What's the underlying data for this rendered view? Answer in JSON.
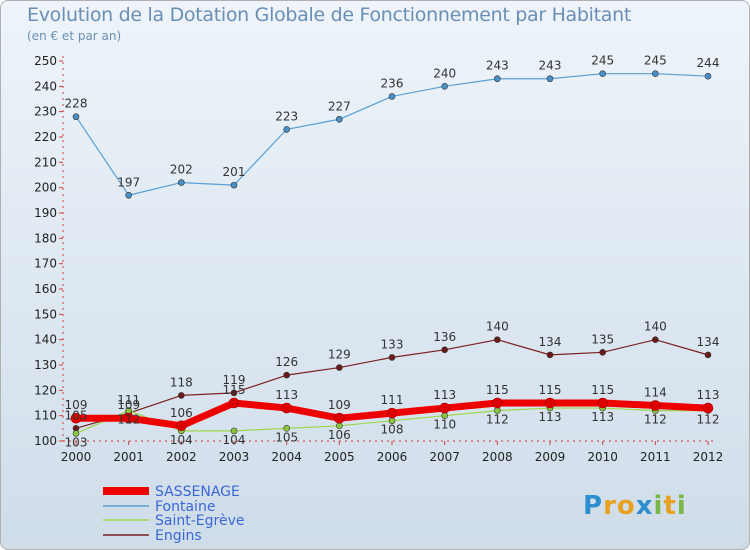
{
  "title": "Evolution de la Dotation Globale de Fonctionnement par Habitant",
  "subtitle": "(en € et par an)",
  "brand": {
    "letters": [
      {
        "ch": "P",
        "color": "#2e8fcf"
      },
      {
        "ch": "r",
        "color": "#e8a020"
      },
      {
        "ch": "o",
        "color": "#e8a020"
      },
      {
        "ch": "x",
        "color": "#2e8fcf"
      },
      {
        "ch": "i",
        "color": "#7ab648"
      },
      {
        "ch": "t",
        "color": "#e8a020"
      },
      {
        "ch": "i",
        "color": "#7ab648"
      }
    ]
  },
  "chart_data": {
    "type": "line",
    "x": [
      "2000",
      "2001",
      "2002",
      "2003",
      "2004",
      "2005",
      "2006",
      "2007",
      "2008",
      "2009",
      "2010",
      "2011",
      "2012"
    ],
    "ylim": [
      100,
      250
    ],
    "yticks": [
      100,
      110,
      120,
      130,
      140,
      150,
      160,
      170,
      180,
      190,
      200,
      210,
      220,
      230,
      240,
      250
    ],
    "grid": false,
    "legend_position": "bottom-left",
    "series": [
      {
        "name": "SASSENAGE",
        "color": "#ee0000",
        "point_color": "#dd0000",
        "width": 7,
        "values": [
          109,
          109,
          106,
          115,
          113,
          109,
          111,
          113,
          115,
          115,
          115,
          114,
          113
        ]
      },
      {
        "name": "Fontaine",
        "color": "#5a9fd4",
        "point_color": "#4a90c8",
        "width": 1.2,
        "values": [
          228,
          197,
          202,
          201,
          223,
          227,
          236,
          240,
          243,
          243,
          245,
          245,
          244
        ]
      },
      {
        "name": "Saint-Egrève",
        "color": "#9ed64a",
        "point_color": "#8cc63f",
        "width": 1.2,
        "values": [
          103,
          112,
          104,
          104,
          105,
          106,
          108,
          110,
          112,
          113,
          113,
          112,
          112
        ]
      },
      {
        "name": "Engins",
        "color": "#7a2020",
        "point_color": "#6b1a1a",
        "width": 1.2,
        "values": [
          105,
          111,
          118,
          119,
          126,
          129,
          133,
          136,
          140,
          134,
          135,
          140,
          134
        ]
      }
    ]
  }
}
